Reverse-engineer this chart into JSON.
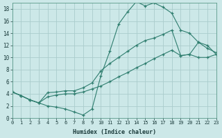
{
  "xlabel": "Humidex (Indice chaleur)",
  "bg_color": "#cce8e8",
  "grid_color": "#aacccc",
  "line_color": "#2e7d6e",
  "xlim": [
    0,
    23
  ],
  "ylim": [
    0,
    19
  ],
  "xticks": [
    0,
    1,
    2,
    3,
    4,
    5,
    6,
    7,
    8,
    9,
    10,
    11,
    12,
    13,
    14,
    15,
    16,
    17,
    18,
    19,
    20,
    21,
    22,
    23
  ],
  "yticks": [
    0,
    2,
    4,
    6,
    8,
    10,
    12,
    14,
    16,
    18
  ],
  "line1_x": [
    0,
    1,
    2,
    3,
    4,
    5,
    6,
    7,
    8,
    9,
    10,
    11,
    12,
    13,
    14,
    15,
    16,
    17,
    18,
    19,
    20,
    21,
    22,
    23
  ],
  "line1_y": [
    4.3,
    3.7,
    3.0,
    2.5,
    2.0,
    1.8,
    1.5,
    1.0,
    0.5,
    1.5,
    7.0,
    11.0,
    15.5,
    17.5,
    19.2,
    18.5,
    19.0,
    18.3,
    17.3,
    14.5,
    14.0,
    12.5,
    11.5,
    10.8
  ],
  "line2_x": [
    0,
    1,
    2,
    3,
    4,
    5,
    6,
    7,
    8,
    9,
    10,
    11,
    12,
    13,
    14,
    15,
    16,
    17,
    18,
    19,
    20,
    21,
    22,
    23
  ],
  "line2_y": [
    4.3,
    3.7,
    3.0,
    2.5,
    4.2,
    4.3,
    4.5,
    4.5,
    5.0,
    5.8,
    7.8,
    9.0,
    10.0,
    11.0,
    12.0,
    12.8,
    13.2,
    13.8,
    14.5,
    10.3,
    10.5,
    12.5,
    12.0,
    10.5
  ],
  "line3_x": [
    0,
    1,
    2,
    3,
    4,
    5,
    6,
    7,
    8,
    9,
    10,
    11,
    12,
    13,
    14,
    15,
    16,
    17,
    18,
    19,
    20,
    21,
    22,
    23
  ],
  "line3_y": [
    4.3,
    3.7,
    3.0,
    2.5,
    3.5,
    3.8,
    4.0,
    4.0,
    4.3,
    4.8,
    5.3,
    6.0,
    6.8,
    7.5,
    8.3,
    9.0,
    9.8,
    10.5,
    11.2,
    10.3,
    10.5,
    10.0,
    10.0,
    10.5
  ]
}
